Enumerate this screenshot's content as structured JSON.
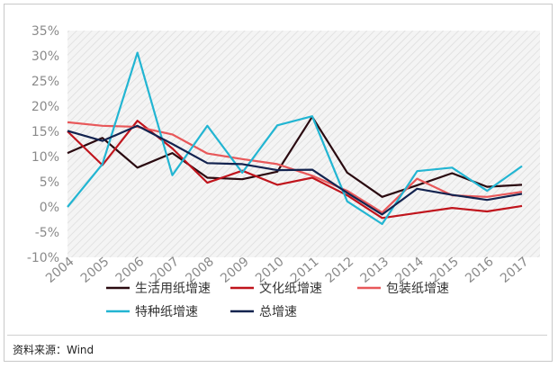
{
  "chart_data": {
    "type": "line",
    "x": [
      "2004",
      "2005",
      "2006",
      "2007",
      "2008",
      "2009",
      "2010",
      "2011",
      "2012",
      "2013",
      "2014",
      "2015",
      "2016",
      "2017"
    ],
    "ylim": [
      -10,
      35
    ],
    "yticks": [
      "35%",
      "30%",
      "25%",
      "20%",
      "15%",
      "10%",
      "5%",
      "0%",
      "-5%",
      "-10%"
    ],
    "ytick_values": [
      35,
      30,
      25,
      20,
      15,
      10,
      5,
      0,
      -5,
      -10
    ],
    "grid": false,
    "legend": "bottom",
    "series": [
      {
        "name": "生活用纸增速",
        "color": "#2a0a10",
        "values": [
          10.7,
          13.7,
          7.8,
          10.7,
          5.8,
          5.5,
          7.0,
          17.9,
          6.8,
          2.0,
          4.3,
          6.7,
          4.0,
          4.4
        ]
      },
      {
        "name": "文化纸增速",
        "color": "#c0141c",
        "values": [
          15.0,
          8.3,
          17.1,
          11.6,
          4.8,
          7.2,
          4.4,
          5.8,
          2.3,
          -2.2,
          -1.2,
          -0.2,
          -0.9,
          0.2
        ]
      },
      {
        "name": "包装纸增速",
        "color": "#e8585a",
        "values": [
          16.8,
          16.1,
          15.9,
          14.4,
          10.6,
          9.5,
          8.5,
          6.2,
          3.2,
          -1.1,
          5.6,
          2.3,
          2.0,
          3.0
        ]
      },
      {
        "name": "特种纸增速",
        "color": "#22b5d2",
        "values": [
          0.0,
          8.5,
          30.6,
          6.3,
          16.1,
          6.8,
          16.2,
          18.0,
          1.1,
          -3.4,
          7.1,
          7.8,
          3.2,
          8.1
        ]
      },
      {
        "name": "总增速",
        "color": "#13234f",
        "values": [
          15.1,
          13.1,
          16.1,
          12.5,
          8.7,
          8.5,
          7.3,
          7.4,
          2.8,
          -1.5,
          3.6,
          2.4,
          1.4,
          2.6
        ]
      }
    ]
  },
  "source_text": "资料来源：Wind"
}
